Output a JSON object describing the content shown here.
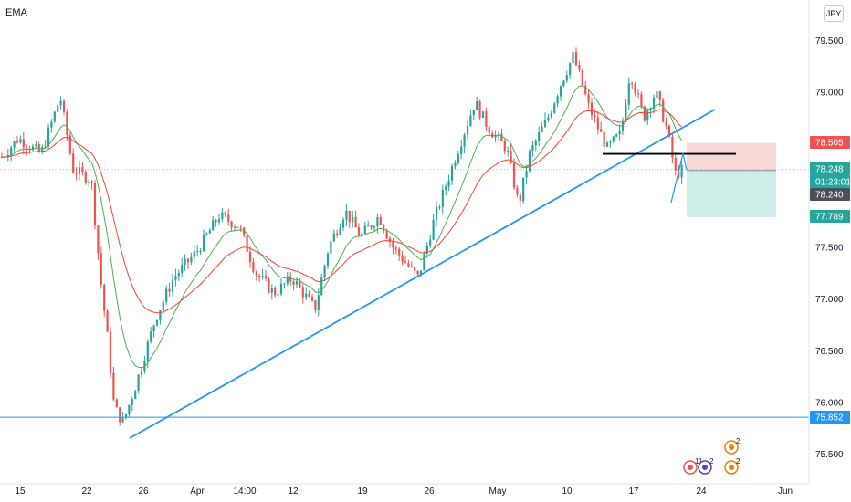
{
  "indicator_label": "EMA",
  "currency_badge": "JPY",
  "colors": {
    "up": "#26a69a",
    "down": "#ef5350",
    "ema_fast": "#4caf50",
    "ema_slow": "#f44336",
    "trendline": "#2196f3",
    "level": "#2196f3",
    "resistance": "#000000",
    "sl_zone": "#f8d7d7",
    "tp_zone": "#cdeee8",
    "tag_red": "#ef5350",
    "tag_green": "#26a69a",
    "tag_gray": "#4a4f5c",
    "tag_blue": "#2196f3"
  },
  "chart_data": {
    "type": "candlestick",
    "y_axis": {
      "ticks": [
        "79.500",
        "79.000",
        "78.505",
        "78.248",
        "01:23:01",
        "78.240",
        "77.789",
        "77.500",
        "77.000",
        "76.500",
        "76.000",
        "75.852",
        "75.500"
      ],
      "ylim": [
        75.3,
        79.9
      ]
    },
    "x_axis": {
      "ticks": [
        "15",
        "22",
        "26",
        "Apr",
        "14:00",
        "12",
        "19",
        "26",
        "May",
        "10",
        "17",
        "24",
        "Jun"
      ]
    },
    "price_tags": [
      {
        "label": "78.505",
        "price": 78.505,
        "color": "red"
      },
      {
        "label": "78.248",
        "price": 78.248,
        "color": "green"
      },
      {
        "label": "01:23:01",
        "price": 78.16,
        "color": "green"
      },
      {
        "label": "78.240",
        "price": 78.24,
        "color": "gray"
      },
      {
        "label": "77.789",
        "price": 77.789,
        "color": "green"
      },
      {
        "label": "75.852",
        "price": 75.852,
        "color": "blue"
      }
    ],
    "horizontal_level": 75.852,
    "resistance_level": 78.4,
    "position": {
      "entry": 78.24,
      "stop": 78.505,
      "target": 77.789
    },
    "events": [
      "11",
      "2",
      "2",
      "2"
    ]
  }
}
